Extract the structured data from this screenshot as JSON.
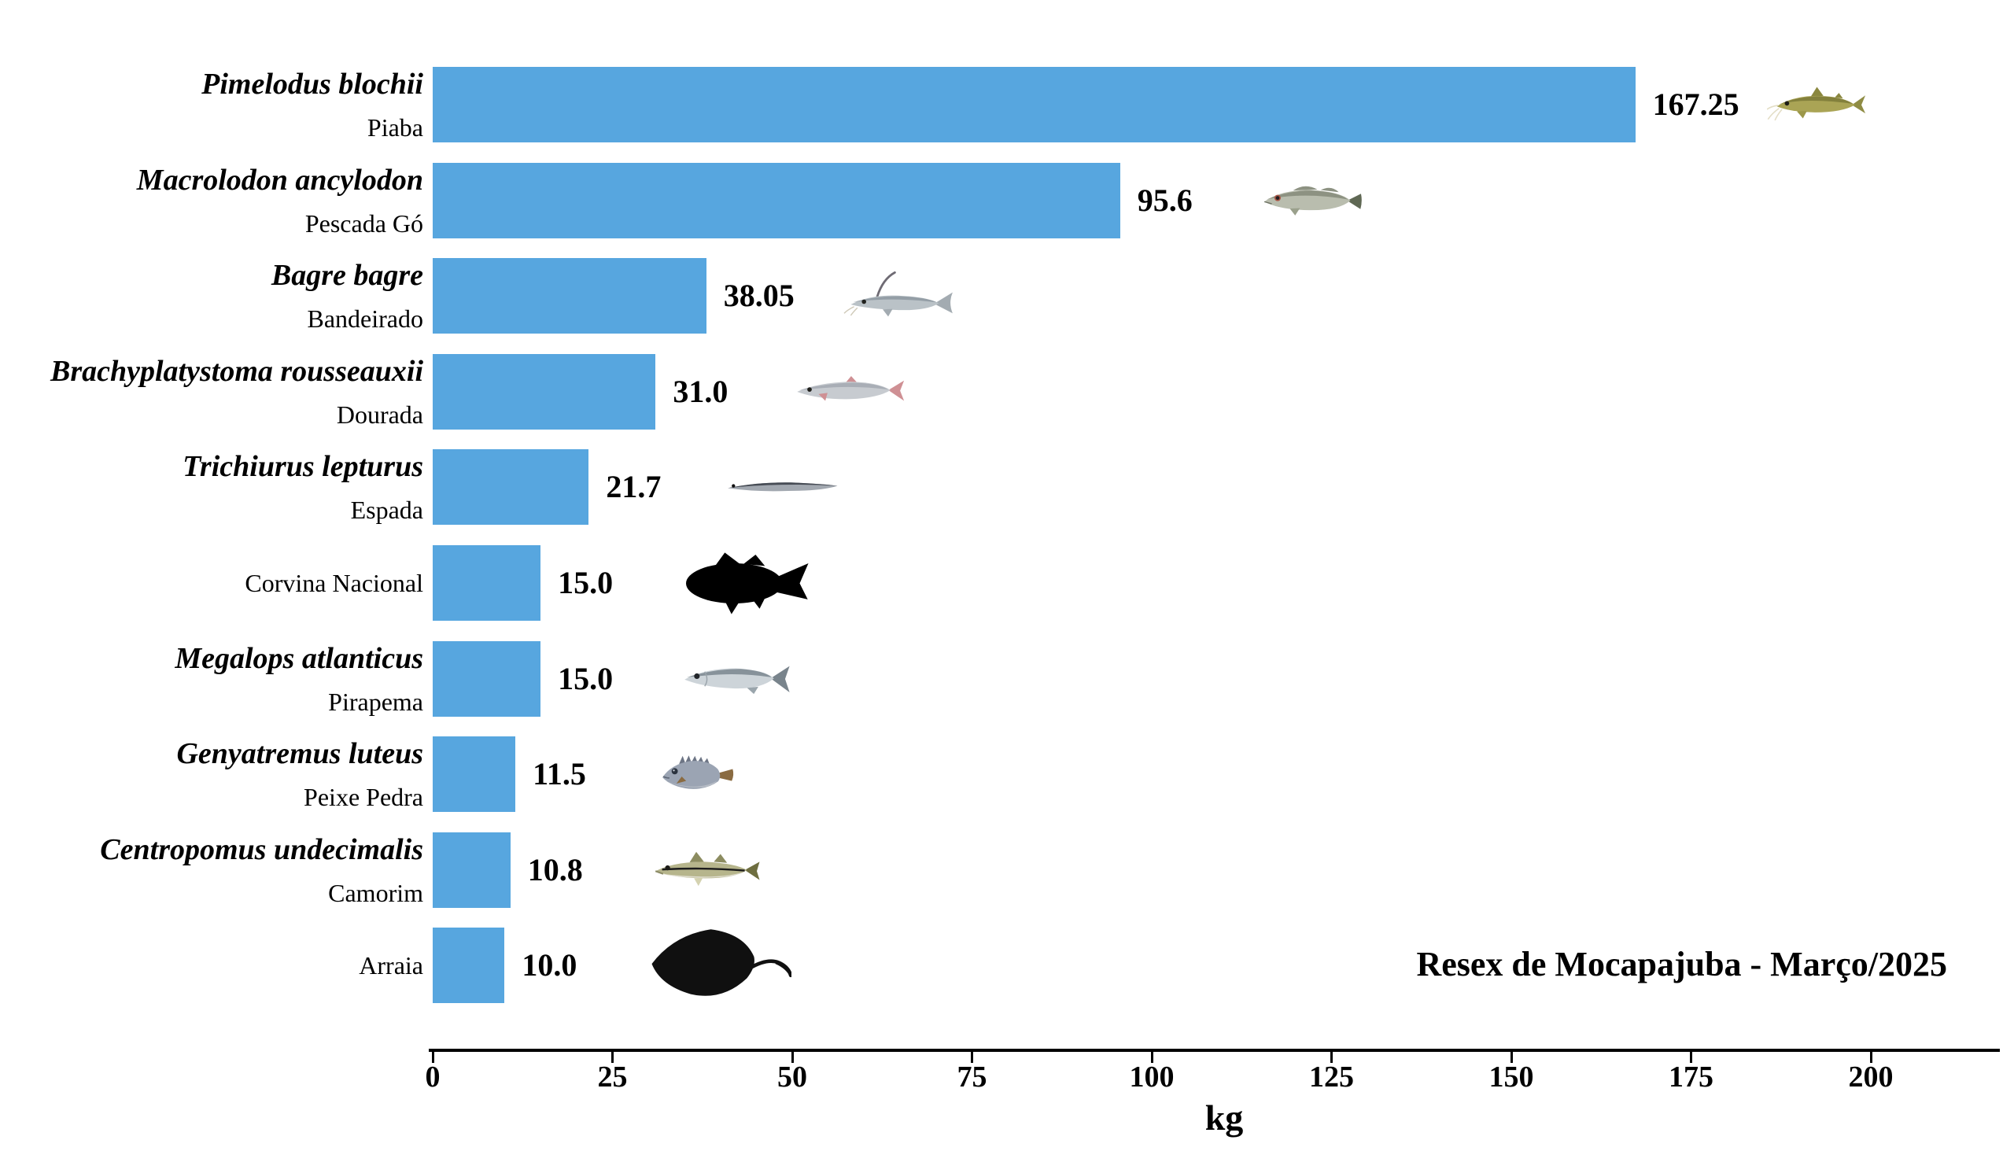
{
  "chart_data": {
    "type": "bar",
    "orientation": "horizontal",
    "title": "",
    "annotation": "Resex de Mocapajuba - Março/2025",
    "xlabel": "kg",
    "xlim": [
      0,
      218
    ],
    "xticks": [
      0,
      25,
      50,
      75,
      100,
      125,
      150,
      175,
      200
    ],
    "grid": false,
    "legend": null,
    "bar_color": "#57a6df",
    "text_color": "#000000",
    "bars": [
      {
        "scientific_name": "Pimelodus blochii",
        "common_name": "Piaba",
        "value": 167.25,
        "value_label": "167.25",
        "fish_icon": "piaba-fish-icon"
      },
      {
        "scientific_name": "Macrolodon ancylodon",
        "common_name": "Pescada Gó",
        "value": 95.6,
        "value_label": "95.6",
        "fish_icon": "pescada-go-fish-icon"
      },
      {
        "scientific_name": "Bagre bagre",
        "common_name": "Bandeirado",
        "value": 38.05,
        "value_label": "38.05",
        "fish_icon": "bandeirado-fish-icon"
      },
      {
        "scientific_name": "Brachyplatystoma rousseauxii",
        "common_name": "Dourada",
        "value": 31.0,
        "value_label": "31.0",
        "fish_icon": "dourada-fish-icon"
      },
      {
        "scientific_name": "Trichiurus lepturus",
        "common_name": "Espada",
        "value": 21.7,
        "value_label": "21.7",
        "fish_icon": "espada-fish-icon"
      },
      {
        "scientific_name": "",
        "common_name": "Corvina Nacional",
        "value": 15.0,
        "value_label": "15.0",
        "fish_icon": "corvina-silhouette-icon"
      },
      {
        "scientific_name": "Megalops atlanticus",
        "common_name": "Pirapema",
        "value": 15.0,
        "value_label": "15.0",
        "fish_icon": "pirapema-fish-icon"
      },
      {
        "scientific_name": "Genyatremus luteus",
        "common_name": "Peixe Pedra",
        "value": 11.5,
        "value_label": "11.5",
        "fish_icon": "peixe-pedra-fish-icon"
      },
      {
        "scientific_name": "Centropomus undecimalis",
        "common_name": "Camorim",
        "value": 10.8,
        "value_label": "10.8",
        "fish_icon": "camorim-fish-icon"
      },
      {
        "scientific_name": "",
        "common_name": "Arraia",
        "value": 10.0,
        "value_label": "10.0",
        "fish_icon": "arraia-silhouette-icon"
      }
    ]
  }
}
